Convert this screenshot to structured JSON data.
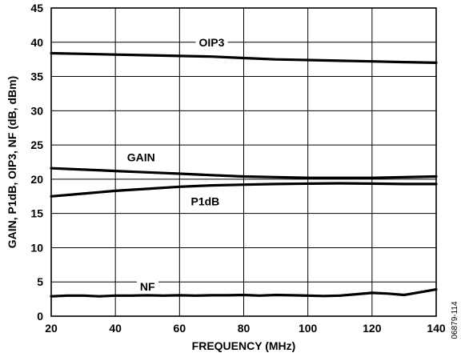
{
  "chart_data": {
    "type": "line",
    "xlabel": "FREQUENCY (MHz)",
    "ylabel": "GAIN, P1dB, OIP3, NF (dB, dBm)",
    "xlim": [
      20,
      140
    ],
    "ylim": [
      0,
      45
    ],
    "x_ticks": [
      20,
      40,
      60,
      80,
      100,
      120,
      140
    ],
    "y_ticks": [
      0,
      5,
      10,
      15,
      20,
      25,
      30,
      35,
      40,
      45
    ],
    "grid": true,
    "legend": "none",
    "figure_id": "06879-114",
    "series": [
      {
        "name": "OIP3",
        "label_at": [
          70,
          40
        ],
        "x": [
          20,
          30,
          40,
          50,
          60,
          70,
          80,
          90,
          100,
          110,
          120,
          130,
          140
        ],
        "values": [
          38.4,
          38.3,
          38.2,
          38.1,
          38.0,
          37.9,
          37.7,
          37.5,
          37.4,
          37.3,
          37.2,
          37.1,
          37.0
        ]
      },
      {
        "name": "GAIN",
        "label_at": [
          48,
          23.2
        ],
        "x": [
          20,
          30,
          40,
          50,
          60,
          70,
          80,
          90,
          100,
          110,
          120,
          130,
          140
        ],
        "values": [
          21.6,
          21.4,
          21.2,
          21.0,
          20.8,
          20.6,
          20.4,
          20.3,
          20.2,
          20.2,
          20.2,
          20.3,
          20.4
        ]
      },
      {
        "name": "P1dB",
        "label_at": [
          68,
          16.8
        ],
        "x": [
          20,
          30,
          40,
          50,
          60,
          70,
          80,
          90,
          100,
          110,
          120,
          130,
          140
        ],
        "values": [
          17.5,
          17.9,
          18.3,
          18.6,
          18.9,
          19.1,
          19.2,
          19.3,
          19.35,
          19.4,
          19.35,
          19.3,
          19.3
        ]
      },
      {
        "name": "NF",
        "label_at": [
          50,
          4.3
        ],
        "x": [
          20,
          25,
          30,
          35,
          40,
          45,
          50,
          55,
          60,
          65,
          70,
          75,
          80,
          85,
          90,
          95,
          100,
          105,
          110,
          115,
          120,
          125,
          130,
          135,
          140
        ],
        "values": [
          2.9,
          3.0,
          3.0,
          2.9,
          3.0,
          3.0,
          3.05,
          3.0,
          3.05,
          3.0,
          3.05,
          3.05,
          3.1,
          3.0,
          3.1,
          3.05,
          3.0,
          2.95,
          3.0,
          3.2,
          3.4,
          3.3,
          3.1,
          3.5,
          3.9
        ]
      }
    ]
  }
}
